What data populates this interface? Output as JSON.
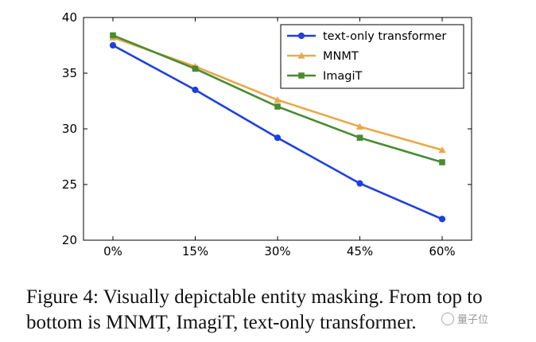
{
  "chart_data": {
    "type": "line",
    "categories": [
      "0%",
      "15%",
      "30%",
      "45%",
      "60%"
    ],
    "ylim": [
      20,
      40
    ],
    "yticks": [
      20,
      25,
      30,
      35,
      40
    ],
    "grid": false,
    "legend_position": "top-right",
    "series": [
      {
        "name": "text-only transformer",
        "color": "#1f3fe0",
        "marker": "circle",
        "values": [
          37.5,
          33.5,
          29.2,
          25.1,
          21.9
        ]
      },
      {
        "name": "MNMT",
        "color": "#e8a94a",
        "marker": "triangle",
        "values": [
          38.2,
          35.6,
          32.6,
          30.2,
          28.1
        ]
      },
      {
        "name": "ImagiT",
        "color": "#4a8a32",
        "marker": "square",
        "values": [
          38.4,
          35.4,
          32.0,
          29.2,
          27.0
        ]
      }
    ]
  },
  "caption": "Figure 4: Visually depictable entity masking. From top to bottom is MNMT, ImagiT, text-only transformer.",
  "watermark": "量子位"
}
